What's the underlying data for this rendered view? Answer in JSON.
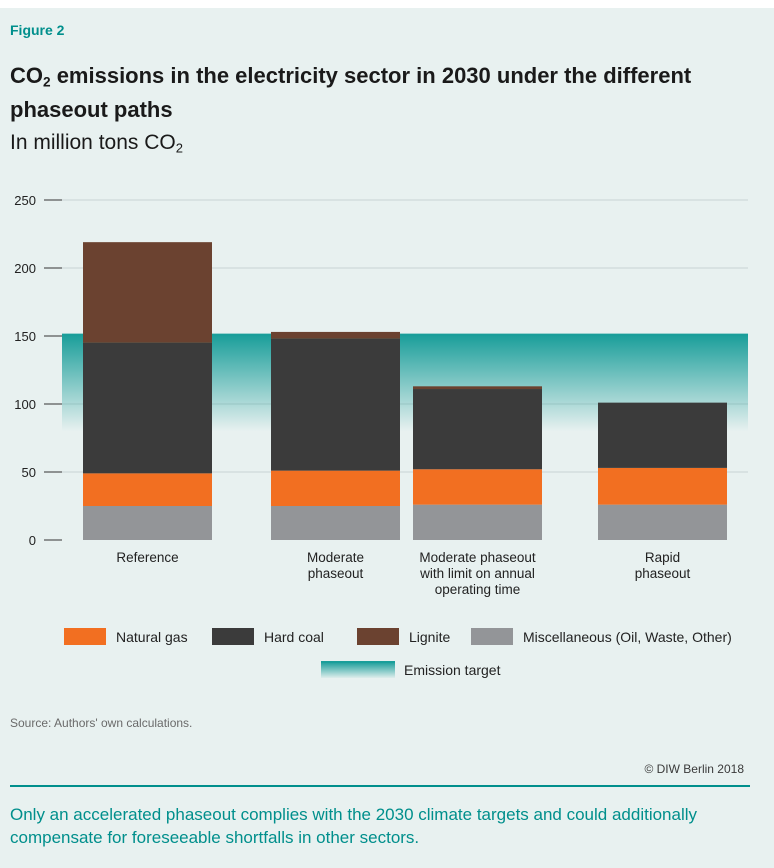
{
  "figure_label": "Figure 2",
  "title": {
    "pre": "CO",
    "sub": "2",
    "post": " emissions in the electricity sector in 2030 under the different phaseout paths"
  },
  "subtitle": {
    "pre": "In million tons CO",
    "sub": "2"
  },
  "source": "Source: Authors' own calculations.",
  "copyright": "© DIW Berlin 2018",
  "caption": "Only an accelerated phaseout complies with the 2030 climate targets and could additionally compensate for foreseeable shortfalls in other sectors.",
  "colors": {
    "natural_gas": "#f26f21",
    "hard_coal": "#3b3b3b",
    "lignite": "#6b4230",
    "misc": "#939598",
    "target": "#1a9e9a"
  },
  "chart_data": {
    "type": "bar",
    "stacked": true,
    "categories": [
      [
        "Reference"
      ],
      [
        "Moderate",
        "phaseout"
      ],
      [
        "Moderate phaseout",
        "with limit on annual",
        "operating time"
      ],
      [
        "Rapid",
        "phaseout"
      ]
    ],
    "series": [
      {
        "name": "Miscellaneous (Oil, Waste, Other)",
        "key": "misc",
        "values": [
          25,
          25,
          26,
          26
        ]
      },
      {
        "name": "Natural gas",
        "key": "natural_gas",
        "values": [
          24,
          26,
          26,
          27
        ]
      },
      {
        "name": "Hard coal",
        "key": "hard_coal",
        "values": [
          96,
          97,
          59,
          48
        ]
      },
      {
        "name": "Lignite",
        "key": "lignite",
        "values": [
          74,
          5,
          2,
          0
        ]
      }
    ],
    "yticks": [
      0,
      50,
      100,
      150,
      200,
      250
    ],
    "ylim": [
      0,
      250
    ],
    "emission_target": {
      "name": "Emission target",
      "upper": 151,
      "fade_to": 80
    },
    "legend": {
      "row1": [
        "Natural gas",
        "Hard coal",
        "Lignite",
        "Miscellaneous (Oil, Waste, Other)"
      ],
      "row2": [
        "Emission target"
      ]
    }
  }
}
